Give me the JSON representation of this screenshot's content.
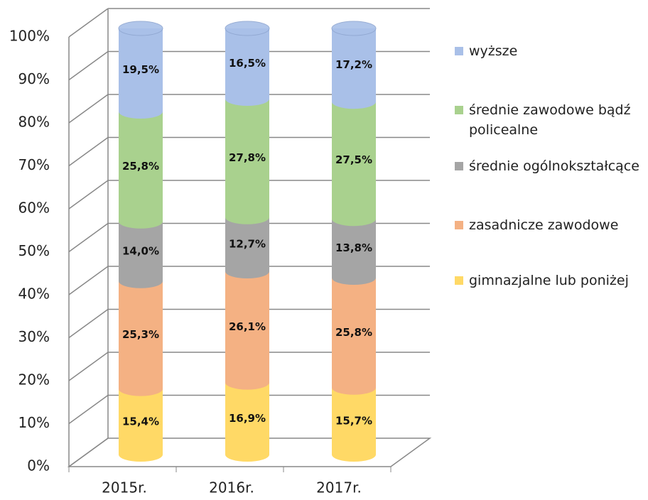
{
  "chart_data": {
    "type": "bar3d_stacked",
    "categories": [
      "2015r.",
      "2016r.",
      "2017r."
    ],
    "ylim": [
      0,
      100
    ],
    "yticks": [
      {
        "value": 0,
        "label": "0%"
      },
      {
        "value": 10,
        "label": "10%"
      },
      {
        "value": 20,
        "label": "20%"
      },
      {
        "value": 30,
        "label": "30%"
      },
      {
        "value": 40,
        "label": "40%"
      },
      {
        "value": 50,
        "label": "50%"
      },
      {
        "value": 60,
        "label": "60%"
      },
      {
        "value": 70,
        "label": "70%"
      },
      {
        "value": 80,
        "label": "80%"
      },
      {
        "value": 90,
        "label": "90%"
      },
      {
        "value": 100,
        "label": "100%"
      }
    ],
    "grid": true,
    "legend": "right",
    "series": [
      {
        "name": "gimnazjalne lub poniżej",
        "color": "#ffd966",
        "values": [
          15.4,
          16.9,
          15.7
        ],
        "value_labels": [
          "15,4%",
          "16,9%",
          "15,7%"
        ]
      },
      {
        "name": "zasadnicze zawodowe",
        "color": "#f4b183",
        "values": [
          25.3,
          26.1,
          25.8
        ],
        "value_labels": [
          "25,3%",
          "26,1%",
          "25,8%"
        ]
      },
      {
        "name": "średnie ogólnokształcące",
        "color": "#a5a5a5",
        "values": [
          14.0,
          12.7,
          13.8
        ],
        "value_labels": [
          "14,0%",
          "12,7%",
          "13,8%"
        ]
      },
      {
        "name": "średnie zawodowe bądź policealne",
        "color": "#a9d18e",
        "values": [
          25.8,
          27.8,
          27.5
        ],
        "value_labels": [
          "25,8%",
          "27,8%",
          "27,5%"
        ]
      },
      {
        "name": "wyższe",
        "color": "#a9c0e8",
        "values": [
          19.5,
          16.5,
          17.2
        ],
        "value_labels": [
          "19,5%",
          "16,5%",
          "17,2%"
        ]
      }
    ]
  }
}
